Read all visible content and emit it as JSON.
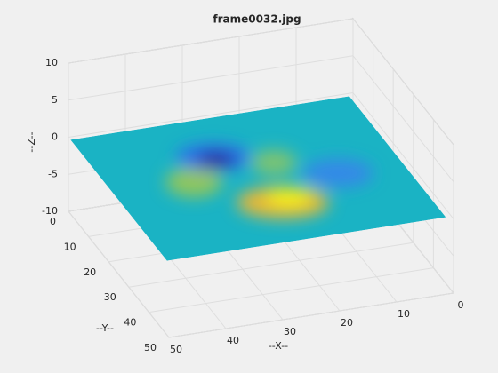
{
  "chart_data": {
    "type": "surface",
    "title": "frame0032.jpg",
    "xlabel": "--X--",
    "ylabel": "--Y--",
    "zlabel": "--Z--",
    "xlim": [
      0,
      50
    ],
    "ylim": [
      0,
      50
    ],
    "zlim": [
      -10,
      10
    ],
    "xticks": [
      0,
      10,
      20,
      30,
      40,
      50
    ],
    "yticks": [
      0,
      10,
      20,
      30,
      40,
      50
    ],
    "zticks": [
      -10,
      -5,
      0,
      5,
      10
    ],
    "grid": true
  }
}
